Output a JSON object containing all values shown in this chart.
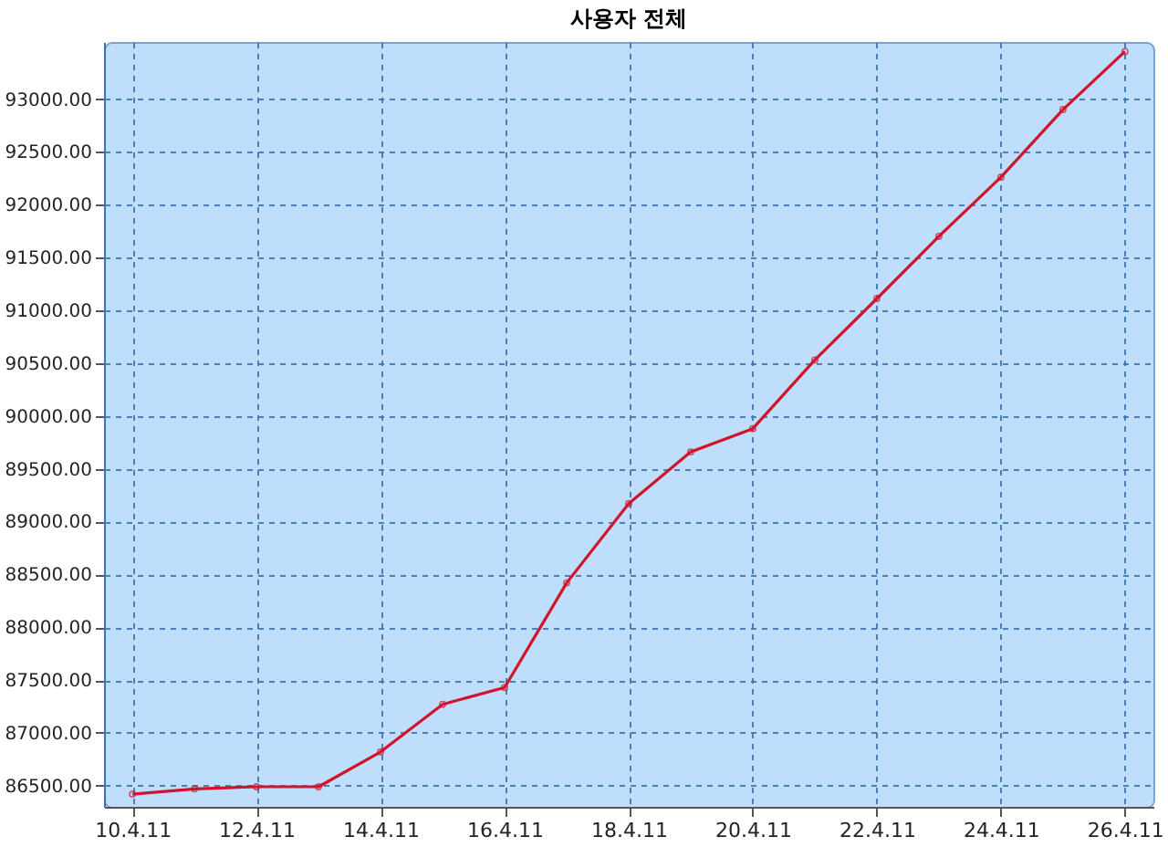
{
  "chart_data": {
    "type": "line",
    "title": "사용자 전체",
    "x": [
      "--04-10",
      "--04-11",
      "--04-12",
      "--04-13",
      "--04-14",
      "--04-15",
      "--04-16",
      "--04-17",
      "--04-18",
      "--04-19",
      "--04-20",
      "--04-21",
      "--04-22",
      "--04-23",
      "--04-24",
      "--04-25",
      "--04-26"
    ],
    "series": [
      {
        "color": "#d0142c",
        "values": [
          86420,
          86470,
          86490,
          86490,
          86820,
          87270,
          87430,
          88420,
          89170,
          89660,
          89880,
          90530,
          91110,
          91700,
          92260,
          92900,
          93450
        ]
      }
    ],
    "xlim": [
      "--04-09T13:00",
      "--04-26T11:00"
    ],
    "xticks": [
      {
        "value": "--04-10",
        "label": "10.4.11"
      },
      {
        "value": "--04-12",
        "label": "12.4.11"
      },
      {
        "value": "--04-14",
        "label": "14.4.11"
      },
      {
        "value": "--04-16",
        "label": "16.4.11"
      },
      {
        "value": "--04-18",
        "label": "18.4.11"
      },
      {
        "value": "--04-20",
        "label": "20.4.11"
      },
      {
        "value": "--04-22",
        "label": "22.4.11"
      },
      {
        "value": "--04-24",
        "label": "24.4.11"
      },
      {
        "value": "--04-26",
        "label": "26.4.11"
      }
    ],
    "ylim": [
      86300,
      93540
    ],
    "yticks": [
      {
        "value": 86500,
        "label": "86500.00"
      },
      {
        "value": 87000,
        "label": "87000.00"
      },
      {
        "value": 87500,
        "label": "87500.00"
      },
      {
        "value": 88000,
        "label": "88000.00"
      },
      {
        "value": 88500,
        "label": "88500.00"
      },
      {
        "value": 89000,
        "label": "89000.00"
      },
      {
        "value": 89500,
        "label": "89500.00"
      },
      {
        "value": 90000,
        "label": "90000.00"
      },
      {
        "value": 90500,
        "label": "90500.00"
      },
      {
        "value": 91000,
        "label": "91000.00"
      },
      {
        "value": 91500,
        "label": "91500.00"
      },
      {
        "value": 92000,
        "label": "92000.00"
      },
      {
        "value": 92500,
        "label": "92500.00"
      },
      {
        "value": 93000,
        "label": "93000.00"
      }
    ],
    "grid": true,
    "legend": false,
    "marker": "circle",
    "line_style": "solid"
  }
}
